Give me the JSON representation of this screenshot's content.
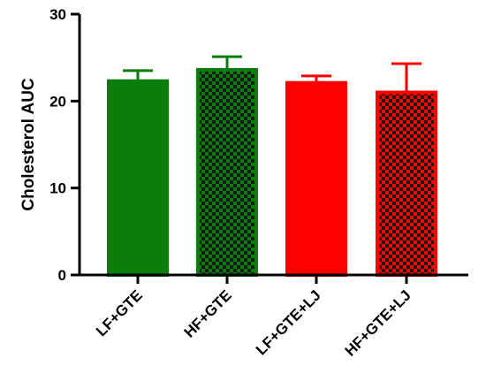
{
  "chart_data": {
    "type": "bar",
    "categories": [
      "LF+GTE",
      "HF+GTE",
      "LF+GTE+LJ",
      "HF+GTE+LJ"
    ],
    "values": [
      22.3,
      23.6,
      22.1,
      21.0
    ],
    "errors": [
      1.2,
      1.5,
      0.8,
      3.3
    ],
    "ylabel": "Cholesterol AUC",
    "xlabel": "",
    "ylim": [
      0,
      30
    ],
    "yticks": [
      0,
      10,
      20,
      30
    ],
    "grid": false,
    "legend": "none",
    "bar_colors": [
      "#0a7d0a",
      "#0a7d0a",
      "#ff0000",
      "#ff0000"
    ],
    "bar_patterns": [
      "solid",
      "checker",
      "solid",
      "checker"
    ],
    "pattern_dark": "#1a1a1a"
  }
}
